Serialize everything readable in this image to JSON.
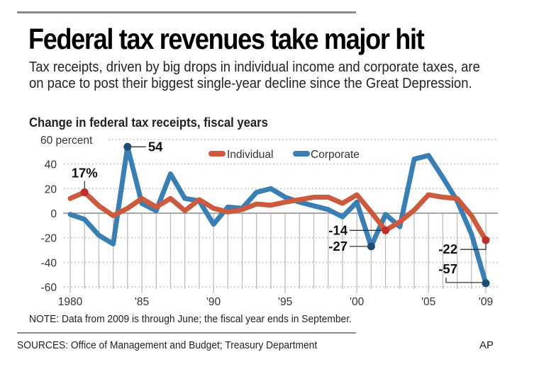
{
  "header": {
    "title": "Federal tax revenues take major hit",
    "subtitle": "Tax receipts, driven by big drops in individual income and corporate taxes, are on pace to post their biggest single-year decline since the Great Depression.",
    "chart_heading": "Change in federal tax receipts, fiscal years"
  },
  "footer": {
    "note": "NOTE: Data from 2009 is through June; the fiscal year ends in September.",
    "sources": "SOURCES: Office of Management and Budget; Treasury Department",
    "credit": "AP"
  },
  "colors": {
    "individual": "#cc5a3e",
    "corporate": "#3a7fb4",
    "marker_individual": "#c0302a",
    "marker_corporate": "#1d4d70",
    "grid": "#bdbdbd",
    "zero_line": "#8c8c8c"
  },
  "chart_data": {
    "type": "line",
    "title": "Change in federal tax receipts, fiscal years",
    "xlabel": "",
    "ylabel": "percent",
    "x": [
      1980,
      1981,
      1982,
      1983,
      1984,
      1985,
      1986,
      1987,
      1988,
      1989,
      1990,
      1991,
      1992,
      1993,
      1994,
      1995,
      1996,
      1997,
      1998,
      1999,
      2000,
      2001,
      2002,
      2003,
      2004,
      2005,
      2006,
      2007,
      2008,
      2009
    ],
    "x_tick_values": [
      1980,
      1985,
      1990,
      1995,
      2000,
      2005,
      2009
    ],
    "x_tick_labels": [
      "1980",
      "'85",
      "'90",
      "'95",
      "'00",
      "'05",
      "'09"
    ],
    "y_tick_values": [
      60,
      40,
      20,
      0,
      -20,
      -40,
      -60
    ],
    "y_tick_labels": [
      "60 percent",
      "40",
      "20",
      "0",
      "-20",
      "-40",
      "-60"
    ],
    "ylim": [
      -60,
      60
    ],
    "grid": true,
    "legend": "top-center",
    "series": [
      {
        "name": "Individual",
        "color_key": "individual",
        "values": [
          12,
          17,
          6,
          -2,
          4,
          12,
          5,
          12,
          2,
          11,
          4,
          1,
          3,
          7.5,
          6.5,
          9,
          11,
          13,
          13,
          8,
          15,
          1,
          -14,
          -7,
          2.5,
          15,
          13,
          12,
          -2,
          -22
        ]
      },
      {
        "name": "Corporate",
        "color_key": "corporate",
        "values": [
          -1,
          -5,
          -18,
          -25,
          54,
          8,
          2,
          32,
          12,
          10,
          -9,
          5,
          4,
          17,
          20,
          13,
          9,
          6,
          3,
          -3,
          9,
          -27,
          -1,
          -11,
          44,
          47,
          29,
          10,
          -17,
          -57
        ]
      }
    ],
    "annotations": [
      {
        "series": "Individual",
        "x": 1981,
        "y": 17,
        "label": "17%",
        "position": "above"
      },
      {
        "series": "Corporate",
        "x": 1984,
        "y": 54,
        "label": "54",
        "position": "right"
      },
      {
        "series": "Individual",
        "x": 2002,
        "y": -14,
        "label": "-14",
        "position": "left"
      },
      {
        "series": "Corporate",
        "x": 2001,
        "y": -27,
        "label": "-27",
        "position": "left"
      },
      {
        "series": "Individual",
        "x": 2009,
        "y": -22,
        "label": "-22",
        "position": "left"
      },
      {
        "series": "Corporate",
        "x": 2009,
        "y": -57,
        "label": "-57",
        "position": "left-above"
      }
    ]
  }
}
